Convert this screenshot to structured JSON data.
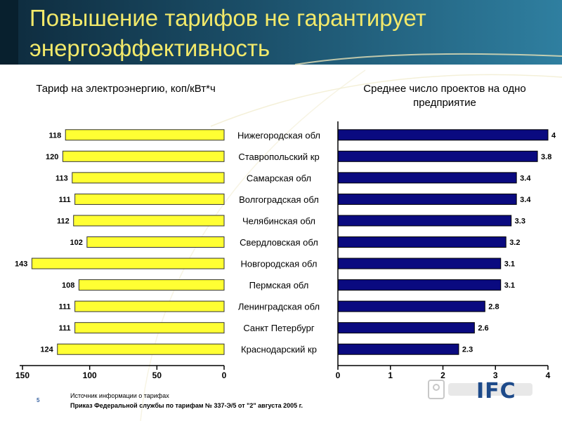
{
  "slide": {
    "title": "Повышение тарифов не гарантирует энергоэффективность",
    "slide_number": "5",
    "source_heading": "Источник информации о тарифах",
    "source_text": "Приказ Федеральной службы по тарифам № 337-Э/5 от \"2\" августа 2005 г.",
    "logo_text": "IFC",
    "colors": {
      "left_bar": "#ffff33",
      "right_bar": "#0a0a80",
      "title_text": "#f2e96a",
      "header": "#1b4f69"
    }
  },
  "chart_data": [
    {
      "type": "bar",
      "orientation": "horizontal",
      "direction": "right-to-left",
      "title": "Тариф на электроэнергию, коп/кВт*ч",
      "categories": [
        "Нижегородская обл",
        "Ставропольский кр",
        "Самарская обл",
        "Волгоградская обл",
        "Челябинская обл",
        "Свердловская обл",
        "Новгородская обл",
        "Пермская обл",
        "Ленинградская обл",
        "Санкт Петербург",
        "Краснодарский кр"
      ],
      "values": [
        118,
        120,
        113,
        111,
        112,
        102,
        143,
        108,
        111,
        111,
        124
      ],
      "xlim": [
        0,
        150
      ],
      "ticks": [
        150,
        100,
        50,
        0
      ],
      "color": "#ffff33",
      "data_labels": true,
      "grid": false
    },
    {
      "type": "bar",
      "orientation": "horizontal",
      "direction": "left-to-right",
      "title": "Среднее число проектов на одно предприятие",
      "categories": [
        "Нижегородская обл",
        "Ставропольский кр",
        "Самарская обл",
        "Волгоградская обл",
        "Челябинская обл",
        "Свердловская обл",
        "Новгородская обл",
        "Пермская обл",
        "Ленинградская обл",
        "Санкт Петербург",
        "Краснодарский кр"
      ],
      "values": [
        4,
        3.8,
        3.4,
        3.4,
        3.3,
        3.2,
        3.1,
        3.1,
        2.8,
        2.6,
        2.3
      ],
      "xlim": [
        0,
        4
      ],
      "ticks": [
        0,
        1,
        2,
        3,
        4
      ],
      "color": "#0a0a80",
      "data_labels": true,
      "grid": false
    }
  ]
}
